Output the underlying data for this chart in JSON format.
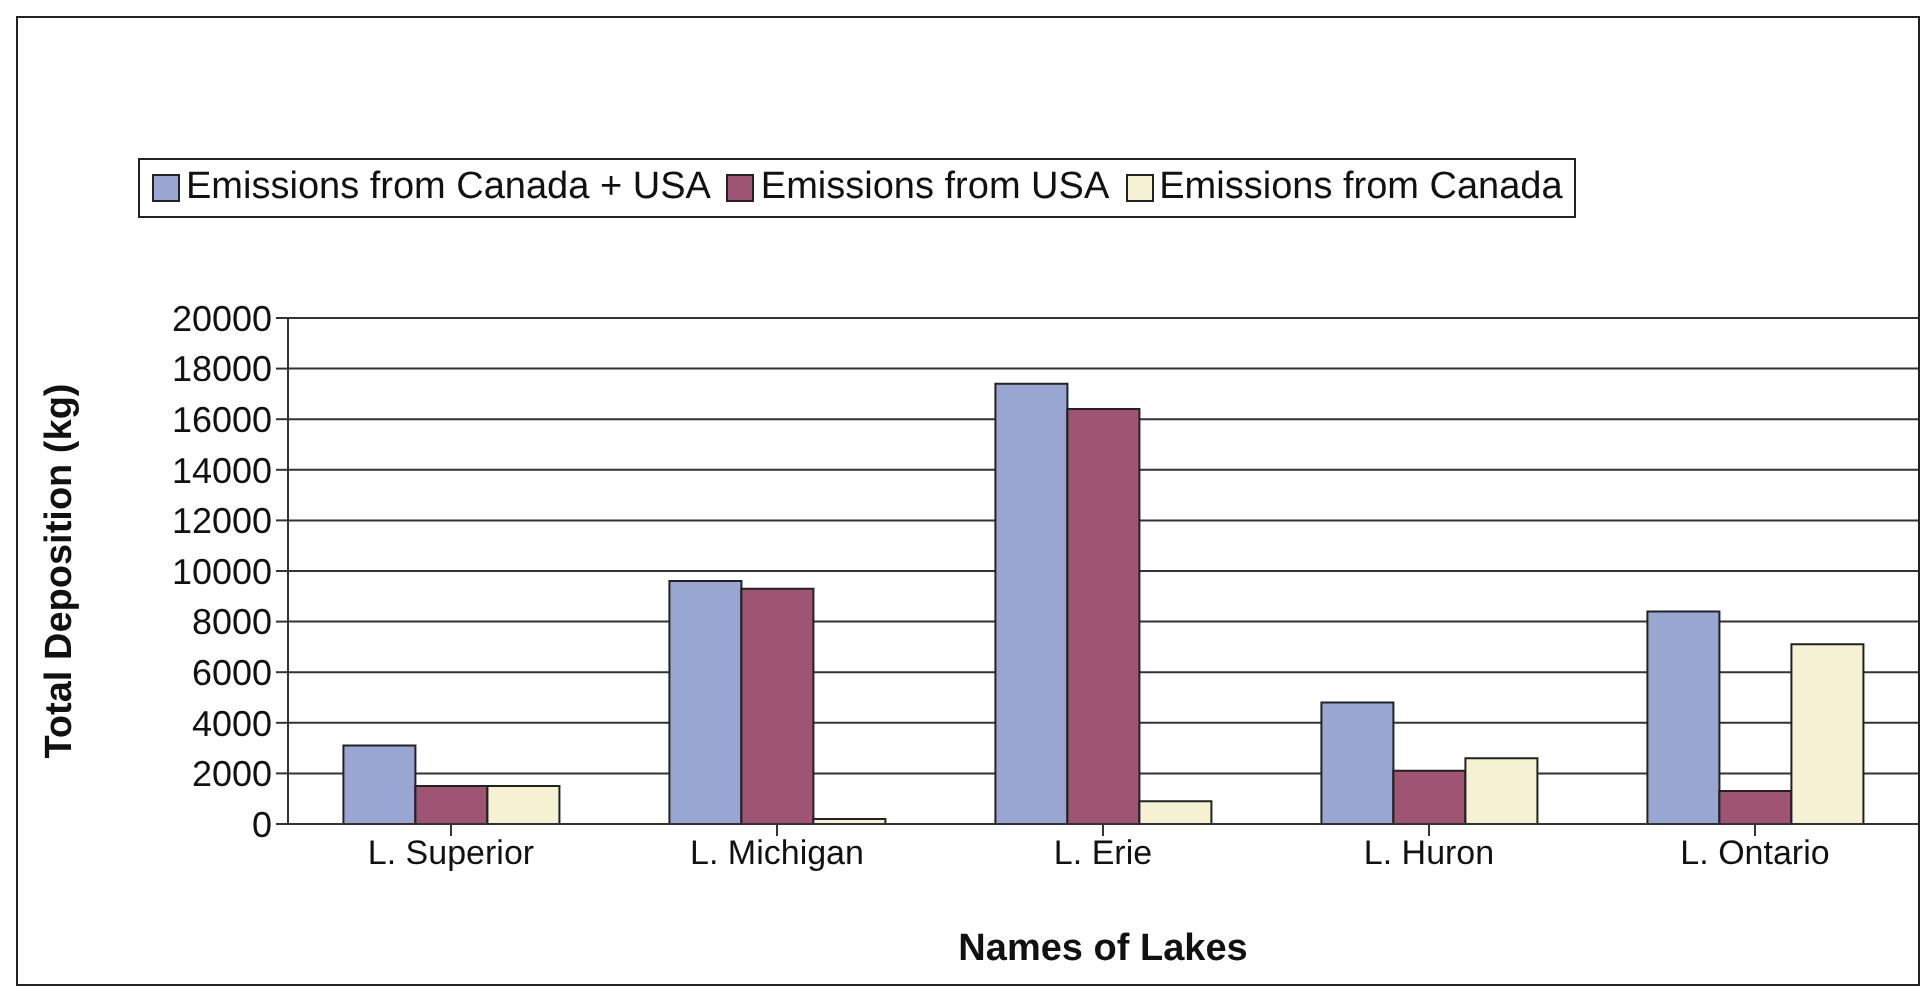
{
  "chart_data": {
    "type": "bar",
    "xlabel": "Names of Lakes",
    "ylabel": "Total Deposition (kg)",
    "categories": [
      "L. Superior",
      "L. Michigan",
      "L. Erie",
      "L. Huron",
      "L. Ontario"
    ],
    "series": [
      {
        "name": "Emissions from Canada + USA",
        "color": "#9aa6d2",
        "values": [
          3100,
          9600,
          17400,
          4800,
          8400
        ]
      },
      {
        "name": "Emissions from USA",
        "color": "#a05474",
        "values": [
          1500,
          9300,
          16400,
          2100,
          1300
        ]
      },
      {
        "name": "Emissions from Canada",
        "color": "#f4f2d2",
        "values": [
          1500,
          200,
          900,
          2600,
          7100
        ]
      }
    ],
    "ylim": [
      0,
      20000
    ],
    "yticks": [
      0,
      2000,
      4000,
      6000,
      8000,
      10000,
      12000,
      14000,
      16000,
      18000,
      20000
    ],
    "grid": "y",
    "legend": "top"
  }
}
